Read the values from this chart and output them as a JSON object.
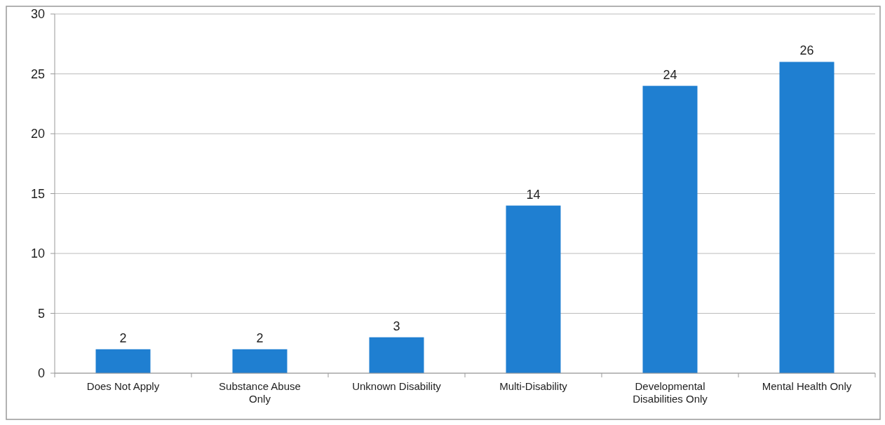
{
  "chart_data": {
    "type": "bar",
    "categories": [
      "Does Not Apply",
      "Substance Abuse Only",
      "Unknown Disability",
      "Multi-Disability",
      "Developmental Disabilities Only",
      "Mental Health Only"
    ],
    "values": [
      2,
      2,
      3,
      14,
      24,
      26
    ],
    "color": "#1f7fd1",
    "ylim": [
      0,
      30
    ],
    "yticks": [
      0,
      5,
      10,
      15,
      20,
      25,
      30
    ],
    "grid": "y",
    "data_labels": true
  }
}
